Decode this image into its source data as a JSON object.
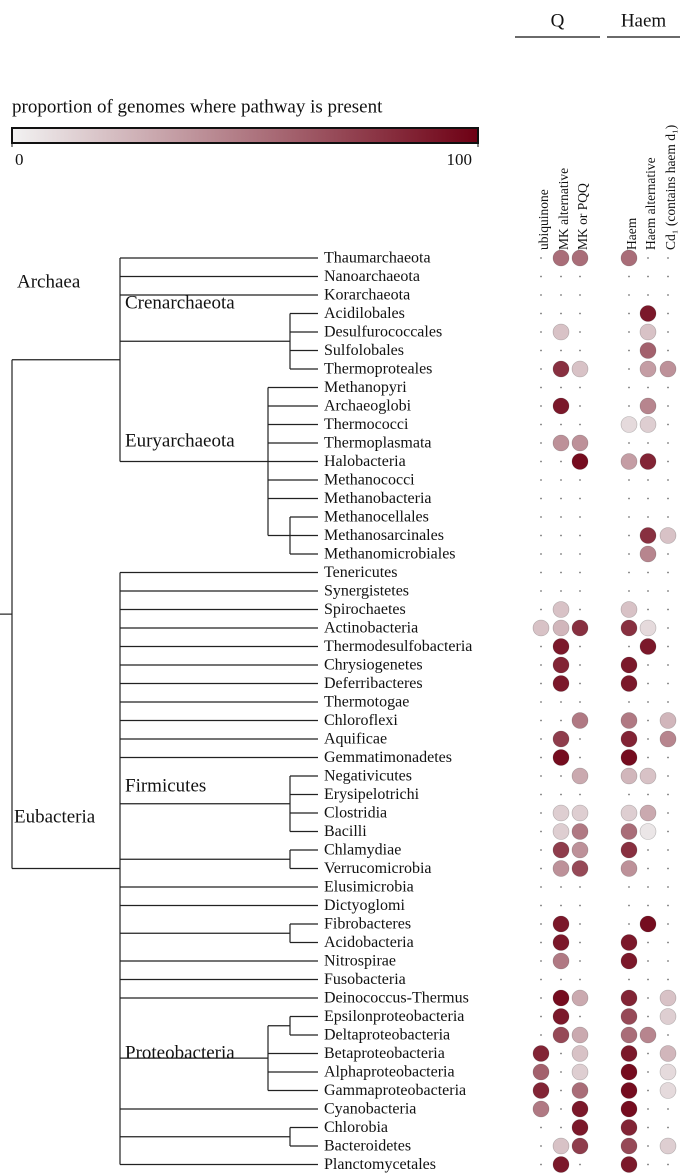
{
  "chart_data": {
    "type": "dotmatrix",
    "title": "proportion of genomes where pathway is present",
    "colorbar_lim": [
      0,
      100
    ],
    "colorbar_ticks": [
      0,
      100
    ],
    "colormap": [
      "#f2f2f2",
      "#6e0014"
    ],
    "groups": [
      "Q",
      "Haem"
    ],
    "clades": [
      "Archaea",
      "Crenarchaeota",
      "Euryarchaeota",
      "Eubacteria",
      "Firmicutes",
      "Proteobacteria"
    ],
    "categories": [
      "Thaumarchaeota",
      "Nanoarchaeota",
      "Korarchaeota",
      "Acidilobales",
      "Desulfurococcales",
      "Sulfolobales",
      "Thermoproteales",
      "Methanopyri",
      "Archaeoglobi",
      "Thermococci",
      "Thermoplasmata",
      "Halobacteria",
      "Methanococci",
      "Methanobacteria",
      "Methanocellales",
      "Methanosarcinales",
      "Methanomicrobiales",
      "Tenericutes",
      "Synergistetes",
      "Spirochaetes",
      "Actinobacteria",
      "Thermodesulfobacteria",
      "Chrysiogenetes",
      "Deferribacteres",
      "Thermotogae",
      "Chloroflexi",
      "Aquificae",
      "Gemmatimonadetes",
      "Negativicutes",
      "Erysipelotrichi",
      "Clostridia",
      "Bacilli",
      "Chlamydiae",
      "Verrucomicrobia",
      "Elusimicrobia",
      "Dictyoglomi",
      "Fibrobacteres",
      "Acidobacteria",
      "Nitrospirae",
      "Fusobacteria",
      "Deinococcus-Thermus",
      "Epsilonproteobacteria",
      "Deltaproteobacteria",
      "Betaproteobacteria",
      "Alphaproteobacteria",
      "Gammaproteobacteria",
      "Cyanobacteria",
      "Chlorobia",
      "Bacteroidetes",
      "Planctomycetales"
    ],
    "series": [
      {
        "name": "ubiquinone",
        "values": [
          0,
          0,
          0,
          0,
          0,
          0,
          0,
          0,
          0,
          0,
          0,
          0,
          0,
          0,
          0,
          0,
          0,
          0,
          0,
          0,
          20,
          0,
          0,
          0,
          0,
          0,
          0,
          0,
          0,
          0,
          0,
          0,
          0,
          0,
          0,
          0,
          0,
          0,
          0,
          0,
          0,
          0,
          0,
          85,
          60,
          85,
          50,
          0,
          0,
          0
        ]
      },
      {
        "name": "MK alternative",
        "values": [
          55,
          0,
          0,
          0,
          20,
          0,
          80,
          0,
          90,
          0,
          40,
          0,
          0,
          0,
          0,
          0,
          0,
          0,
          0,
          20,
          25,
          90,
          85,
          90,
          0,
          0,
          75,
          95,
          0,
          0,
          15,
          15,
          75,
          40,
          0,
          0,
          90,
          90,
          50,
          0,
          95,
          90,
          70,
          0,
          0,
          0,
          0,
          0,
          20,
          90
        ]
      },
      {
        "name": "MK or PQQ",
        "values": [
          55,
          0,
          0,
          0,
          0,
          0,
          20,
          0,
          0,
          0,
          40,
          95,
          0,
          0,
          0,
          0,
          0,
          0,
          0,
          0,
          80,
          0,
          0,
          0,
          0,
          50,
          0,
          0,
          30,
          0,
          15,
          50,
          40,
          70,
          0,
          0,
          0,
          0,
          0,
          0,
          30,
          0,
          30,
          20,
          15,
          55,
          90,
          90,
          75,
          0
        ]
      },
      {
        "name": "Haem",
        "values": [
          55,
          0,
          0,
          0,
          0,
          0,
          0,
          0,
          0,
          10,
          0,
          35,
          0,
          0,
          0,
          0,
          0,
          0,
          0,
          20,
          80,
          0,
          90,
          90,
          0,
          50,
          85,
          95,
          25,
          0,
          15,
          55,
          80,
          40,
          0,
          0,
          0,
          90,
          90,
          0,
          85,
          70,
          55,
          90,
          95,
          95,
          95,
          85,
          70,
          90
        ]
      },
      {
        "name": "Haem alternative",
        "values": [
          0,
          0,
          0,
          90,
          20,
          60,
          35,
          0,
          45,
          15,
          0,
          85,
          0,
          0,
          0,
          80,
          45,
          0,
          0,
          0,
          10,
          90,
          0,
          0,
          0,
          0,
          0,
          0,
          20,
          0,
          30,
          5,
          0,
          0,
          0,
          0,
          95,
          0,
          0,
          0,
          0,
          0,
          45,
          0,
          0,
          0,
          0,
          0,
          0,
          0
        ]
      },
      {
        "name": "Cd₁ (contains haem d₁)",
        "values": [
          0,
          0,
          0,
          0,
          0,
          0,
          40,
          0,
          0,
          0,
          0,
          0,
          0,
          0,
          0,
          20,
          0,
          0,
          0,
          0,
          0,
          0,
          0,
          0,
          0,
          25,
          45,
          0,
          0,
          0,
          0,
          0,
          0,
          0,
          0,
          0,
          0,
          0,
          0,
          0,
          20,
          15,
          0,
          25,
          10,
          10,
          0,
          0,
          15,
          0
        ]
      }
    ]
  }
}
